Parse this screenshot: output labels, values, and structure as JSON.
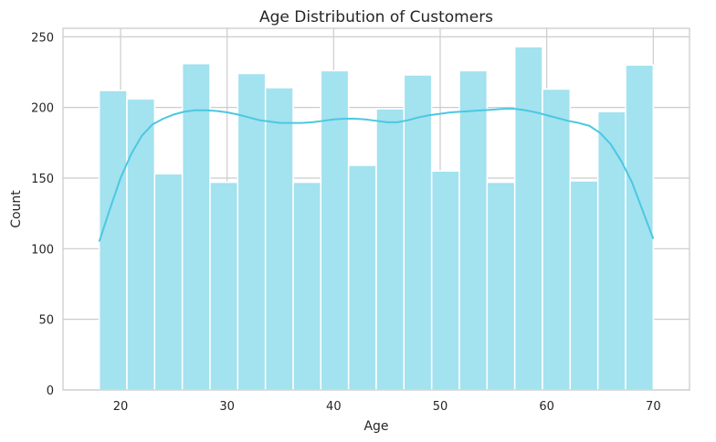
{
  "chart_data": {
    "type": "bar",
    "title": "Age Distribution of Customers",
    "xlabel": "Age",
    "ylabel": "Count",
    "xlim": [
      14.6,
      73.4
    ],
    "ylim": [
      0,
      256
    ],
    "xticks": [
      20,
      30,
      40,
      50,
      60,
      70
    ],
    "yticks": [
      0,
      50,
      100,
      150,
      200,
      250
    ],
    "grid": true,
    "bins": {
      "edges": [
        18.0,
        20.6,
        23.2,
        25.8,
        28.4,
        31.0,
        33.6,
        36.2,
        38.8,
        41.4,
        44.0,
        46.6,
        49.2,
        51.8,
        54.4,
        57.0,
        59.6,
        62.2,
        64.8,
        67.4,
        70.0
      ],
      "counts": [
        212,
        206,
        153,
        231,
        147,
        224,
        214,
        147,
        226,
        159,
        199,
        223,
        155,
        226,
        147,
        243,
        213,
        148,
        197,
        230
      ]
    },
    "kde": {
      "x": [
        18,
        19,
        20,
        21,
        22,
        23,
        24,
        25,
        26,
        27,
        28,
        29,
        30,
        31,
        32,
        33,
        34,
        35,
        36,
        37,
        38,
        39,
        40,
        41,
        42,
        43,
        44,
        45,
        46,
        47,
        48,
        49,
        50,
        51,
        52,
        53,
        54,
        55,
        56,
        57,
        58,
        59,
        60,
        61,
        62,
        63,
        64,
        65,
        66,
        67,
        68,
        69,
        70
      ],
      "y": [
        105,
        128,
        150,
        167,
        180,
        188,
        192,
        195,
        197,
        198,
        198,
        197.5,
        196.5,
        195,
        193,
        191,
        190,
        189,
        189,
        189,
        189.5,
        190.5,
        191.5,
        192,
        192,
        191.5,
        190.5,
        189.5,
        189.5,
        191,
        193,
        194.5,
        195.5,
        196.5,
        197,
        197.5,
        198,
        198.5,
        199,
        199,
        198,
        196.5,
        194.5,
        192.5,
        190.5,
        189,
        187,
        182,
        174,
        162,
        147,
        127,
        107
      ]
    },
    "colors": {
      "bar_fill": "#a3e2ef",
      "bar_edge": "#ffffff",
      "kde_line": "#4bc8e1",
      "grid": "#cccccc",
      "axes_edge": "#cccccc",
      "text": "#262626"
    }
  }
}
